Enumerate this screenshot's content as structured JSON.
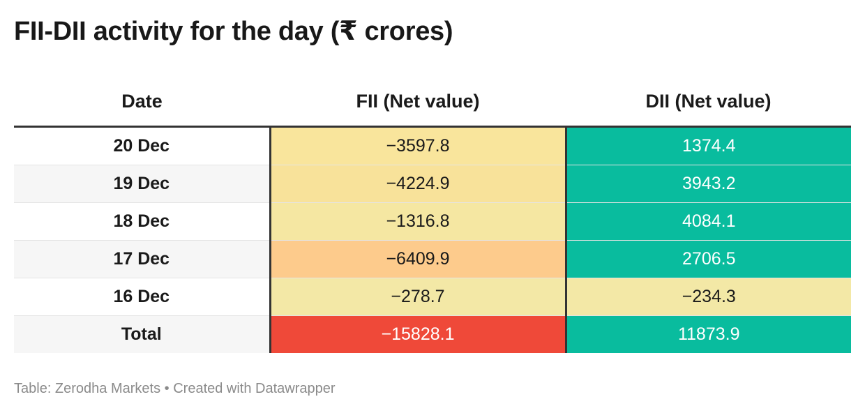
{
  "title": "FII-DII activity for the day (₹ crores)",
  "source": "Table: Zerodha Markets • Created with Datawrapper",
  "colors": {
    "dii_positive": "#09bc9e",
    "fii_light": "#f4e7a4",
    "fii_mid": "#f9e49c",
    "fii_orange": "#fdcb8b",
    "fii_total": "#ef4939",
    "text_dark": "#1a1a1a",
    "text_light": "#ffffff"
  },
  "chart_data": {
    "type": "table",
    "columns": [
      "Date",
      "FII (Net value)",
      "DII (Net value)"
    ],
    "rows": [
      {
        "date": "20 Dec",
        "fii": "−3597.8",
        "dii": "1374.4",
        "fii_bg": "#f9e59c",
        "fii_fg": "#1a1a1a",
        "dii_bg": "#09bc9e",
        "dii_fg": "#ffffff"
      },
      {
        "date": "19 Dec",
        "fii": "−4224.9",
        "dii": "3943.2",
        "fii_bg": "#f8e29a",
        "fii_fg": "#1a1a1a",
        "dii_bg": "#09bc9e",
        "dii_fg": "#ffffff"
      },
      {
        "date": "18 Dec",
        "fii": "−1316.8",
        "dii": "4084.1",
        "fii_bg": "#f5e7a2",
        "fii_fg": "#1a1a1a",
        "dii_bg": "#09bc9e",
        "dii_fg": "#ffffff"
      },
      {
        "date": "17 Dec",
        "fii": "−6409.9",
        "dii": "2706.5",
        "fii_bg": "#fdcb8c",
        "fii_fg": "#1a1a1a",
        "dii_bg": "#09bc9e",
        "dii_fg": "#ffffff"
      },
      {
        "date": "16 Dec",
        "fii": "−278.7",
        "dii": "−234.3",
        "fii_bg": "#f3e8a6",
        "fii_fg": "#1a1a1a",
        "dii_bg": "#f3e8a6",
        "dii_fg": "#1a1a1a"
      },
      {
        "date": "Total",
        "fii": "−15828.1",
        "dii": "11873.9",
        "fii_bg": "#ef4939",
        "fii_fg": "#ffffff",
        "dii_bg": "#09bc9e",
        "dii_fg": "#ffffff",
        "is_total": true
      }
    ]
  }
}
